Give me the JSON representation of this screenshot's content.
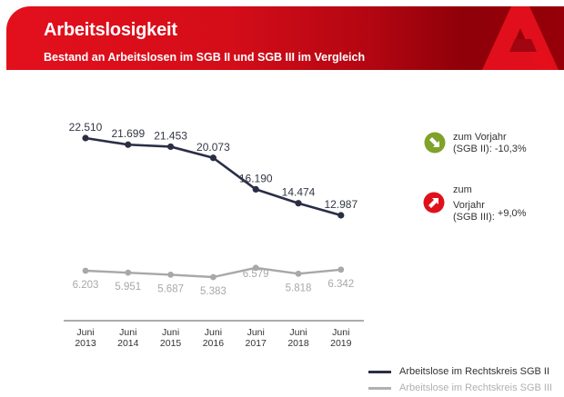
{
  "header": {
    "title": "Arbeitslosigkeit",
    "subtitle": "Bestand an Arbeitslosen im SGB II und SGB III im Vergleich",
    "logo_icon": "ba-logo-icon"
  },
  "colors": {
    "header_red": "#e3101c",
    "series_sgb2": "#2a2e45",
    "series_sgb3": "#a8a8a8",
    "badge_down": "#7fa22a",
    "badge_up": "#e0101b"
  },
  "badges": [
    {
      "icon": "arrow-down-right-icon",
      "line1": "zum Vorjahr",
      "line2": "(SGB II):",
      "value": "-10,3%"
    },
    {
      "icon": "arrow-up-right-icon",
      "line1": "zum",
      "line2": "Vorjahr",
      "line3": "(SGB III):",
      "value": "+9,0%"
    }
  ],
  "chart_data": {
    "type": "line",
    "title": "Arbeitslosigkeit",
    "subtitle": "Bestand an Arbeitslosen im SGB II und SGB III im Vergleich",
    "categories": [
      [
        "Juni",
        "2013"
      ],
      [
        "Juni",
        "2014"
      ],
      [
        "Juni",
        "2015"
      ],
      [
        "Juni",
        "2016"
      ],
      [
        "Juni",
        "2017"
      ],
      [
        "Juni",
        "2018"
      ],
      [
        "Juni",
        "2019"
      ]
    ],
    "series": [
      {
        "name": "Arbeitslose im Rechtskreis SGB II",
        "values": [
          22510,
          21699,
          21453,
          20073,
          16190,
          14474,
          12987
        ],
        "labels": [
          "22.510",
          "21.699",
          "21.453",
          "20.073",
          "16.190",
          "14.474",
          "12.987"
        ]
      },
      {
        "name": "Arbeitslose im Rechtskreis SGB III",
        "values": [
          6203,
          5951,
          5687,
          5383,
          6579,
          5818,
          6342
        ],
        "labels": [
          "6.203",
          "5.951",
          "5.687",
          "5.383",
          "6.579",
          "5.818",
          "6.342"
        ]
      }
    ],
    "xlabel": "",
    "ylabel": "",
    "grid": false,
    "legend": "bottom-right"
  }
}
